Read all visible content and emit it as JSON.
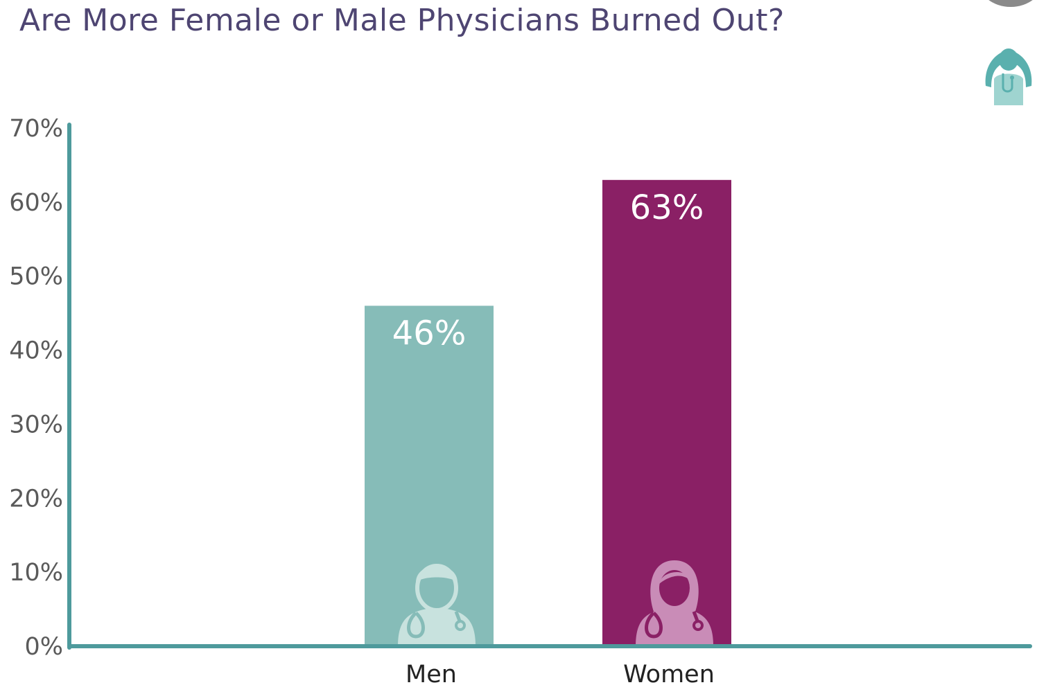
{
  "chart_data": {
    "type": "bar",
    "title": "Are More Female or Male Physicians Burned Out?",
    "xlabel": "",
    "ylabel": "",
    "categories": [
      "Men",
      "Women"
    ],
    "values": [
      46,
      63
    ],
    "data_labels": [
      "46%",
      "63%"
    ],
    "ylim": [
      0,
      70
    ],
    "yticks": [
      0,
      10,
      20,
      30,
      40,
      50,
      60,
      70
    ],
    "ytick_labels": [
      "0%",
      "10%",
      "20%",
      "30%",
      "40%",
      "50%",
      "60%",
      "70%"
    ],
    "grid": false,
    "legend": "none",
    "bar_icons": [
      "male-doctor-icon",
      "female-doctor-icon"
    ],
    "corner_icon": "stressed-doctor-icon"
  },
  "colors": {
    "title": "#4e4572",
    "axis": "#4e9a9c",
    "men_bar": "#86bcb8",
    "women_bar": "#8a2065",
    "men_icon": "#c8e2de",
    "women_icon": "#c98cb7",
    "corner_icon": "#5ab0ae",
    "corner_icon_light": "#9fd4d0"
  }
}
